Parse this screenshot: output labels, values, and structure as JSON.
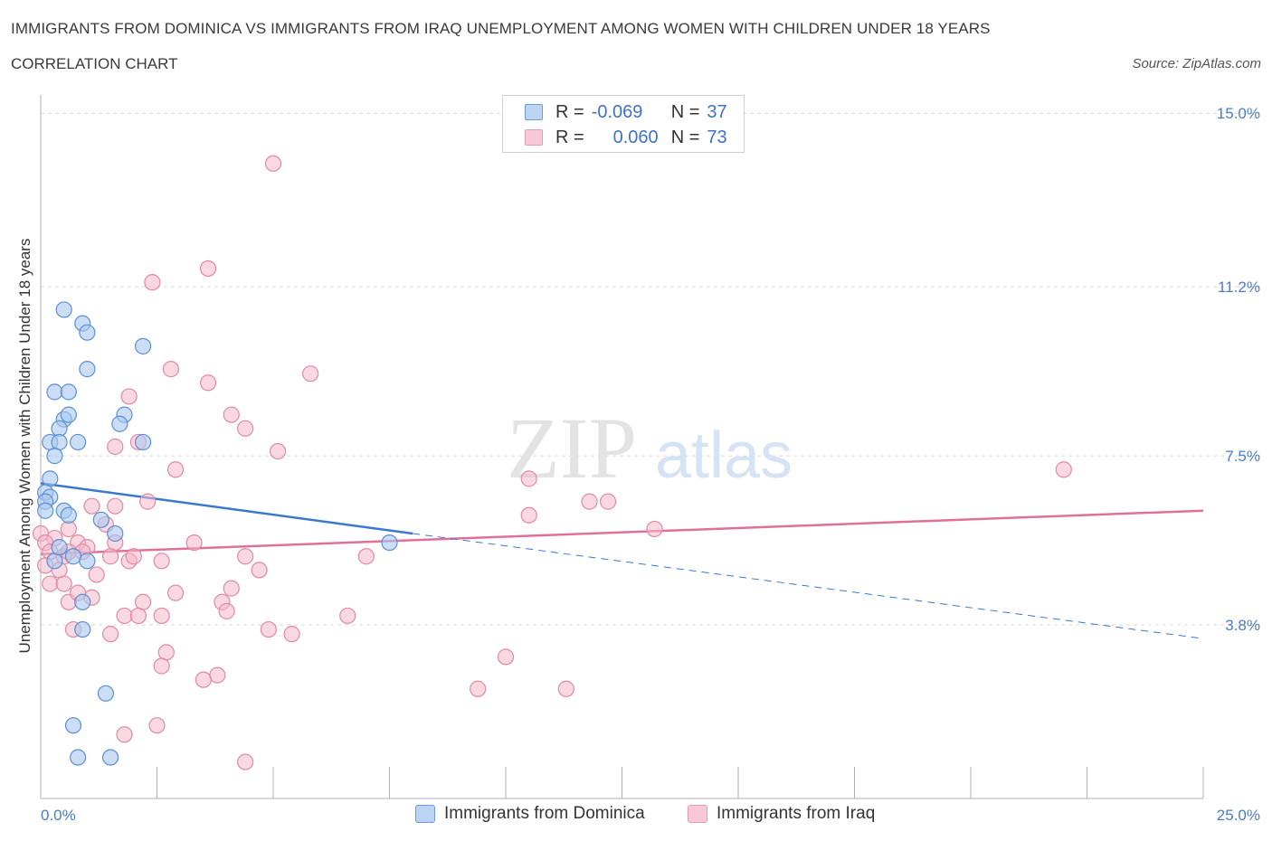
{
  "header": {
    "title": "IMMIGRANTS FROM DOMINICA VS IMMIGRANTS FROM IRAQ UNEMPLOYMENT AMONG WOMEN WITH CHILDREN UNDER 18 YEARS",
    "subtitle": "CORRELATION CHART",
    "source": "Source: ZipAtlas.com"
  },
  "watermark": {
    "zip": "ZIP",
    "atlas": "atlas"
  },
  "legend": {
    "rows": [
      {
        "r_label": "R =",
        "r_value": "-0.069",
        "n_label": "N =",
        "n_value": "37"
      },
      {
        "r_label": "R =",
        "r_value": "0.060",
        "n_label": "N =",
        "n_value": "73"
      }
    ]
  },
  "bottom_legend": {
    "series_a": "Immigrants from Dominica",
    "series_b": "Immigrants from Iraq"
  },
  "colors": {
    "dominica_fill": "#a9c8ef",
    "dominica_stroke": "#5b8fd6",
    "dominica_line": "#3a78d0",
    "iraq_fill": "#f4b8cb",
    "iraq_stroke": "#e08aa5",
    "iraq_line": "#e0709a",
    "tick": "#4a7cc7",
    "grid": "#d9d9d9"
  },
  "chart_data": {
    "type": "scatter",
    "title": "IMMIGRANTS FROM DOMINICA VS IMMIGRANTS FROM IRAQ UNEMPLOYMENT AMONG WOMEN WITH CHILDREN UNDER 18 YEARS",
    "xlabel": "",
    "ylabel": "Unemployment Among Women with Children Under 18 years",
    "xlim": [
      0,
      25
    ],
    "ylim": [
      0,
      15.4
    ],
    "y_ticks": [
      3.8,
      7.5,
      11.2,
      15.0
    ],
    "y_tick_labels": [
      "3.8%",
      "7.5%",
      "11.2%",
      "15.0%"
    ],
    "x_tick_labels": [
      "0.0%",
      "25.0%"
    ],
    "series": [
      {
        "name": "Immigrants from Dominica",
        "R": -0.069,
        "N": 37,
        "trend": {
          "x0": 0.0,
          "y0": 6.9,
          "x1": 8.0,
          "y1": 5.8,
          "dashed_to_x": 25.0,
          "dashed_to_y": 3.5
        },
        "points": [
          [
            0.5,
            10.7
          ],
          [
            0.9,
            10.4
          ],
          [
            1.0,
            10.2
          ],
          [
            2.2,
            9.9
          ],
          [
            1.0,
            9.4
          ],
          [
            0.3,
            8.9
          ],
          [
            0.6,
            8.9
          ],
          [
            0.5,
            8.3
          ],
          [
            0.6,
            8.4
          ],
          [
            1.8,
            8.4
          ],
          [
            1.7,
            8.2
          ],
          [
            0.4,
            8.1
          ],
          [
            0.2,
            7.8
          ],
          [
            0.4,
            7.8
          ],
          [
            0.8,
            7.8
          ],
          [
            2.2,
            7.8
          ],
          [
            0.3,
            7.5
          ],
          [
            0.2,
            7.0
          ],
          [
            0.1,
            6.7
          ],
          [
            0.2,
            6.6
          ],
          [
            0.1,
            6.5
          ],
          [
            0.5,
            6.3
          ],
          [
            0.6,
            6.2
          ],
          [
            0.1,
            6.3
          ],
          [
            1.3,
            6.1
          ],
          [
            1.6,
            5.8
          ],
          [
            7.5,
            5.6
          ],
          [
            0.3,
            5.2
          ],
          [
            0.7,
            5.3
          ],
          [
            1.0,
            5.2
          ],
          [
            0.9,
            4.3
          ],
          [
            0.9,
            3.7
          ],
          [
            1.4,
            2.3
          ],
          [
            0.7,
            1.6
          ],
          [
            0.8,
            0.9
          ],
          [
            1.5,
            0.9
          ],
          [
            0.4,
            5.5
          ]
        ]
      },
      {
        "name": "Immigrants from Iraq",
        "R": 0.06,
        "N": 73,
        "trend": {
          "x0": 0.0,
          "y0": 5.35,
          "x1": 25.0,
          "y1": 6.3
        },
        "points": [
          [
            5.0,
            13.9
          ],
          [
            3.6,
            11.6
          ],
          [
            2.4,
            11.3
          ],
          [
            5.8,
            9.3
          ],
          [
            2.8,
            9.4
          ],
          [
            3.6,
            9.1
          ],
          [
            1.9,
            8.8
          ],
          [
            4.1,
            8.4
          ],
          [
            4.4,
            8.1
          ],
          [
            5.1,
            7.6
          ],
          [
            1.6,
            7.7
          ],
          [
            2.1,
            7.8
          ],
          [
            2.9,
            7.2
          ],
          [
            22.0,
            7.2
          ],
          [
            10.5,
            7.0
          ],
          [
            2.3,
            6.5
          ],
          [
            11.8,
            6.5
          ],
          [
            12.2,
            6.5
          ],
          [
            1.1,
            6.4
          ],
          [
            1.6,
            6.4
          ],
          [
            10.5,
            6.2
          ],
          [
            1.4,
            6.0
          ],
          [
            0.0,
            5.8
          ],
          [
            0.3,
            5.7
          ],
          [
            0.6,
            5.9
          ],
          [
            13.2,
            5.9
          ],
          [
            0.8,
            5.6
          ],
          [
            1.0,
            5.5
          ],
          [
            1.6,
            5.6
          ],
          [
            0.1,
            5.6
          ],
          [
            0.2,
            5.4
          ],
          [
            3.3,
            5.6
          ],
          [
            0.5,
            5.3
          ],
          [
            0.6,
            5.4
          ],
          [
            0.9,
            5.4
          ],
          [
            1.5,
            5.3
          ],
          [
            1.9,
            5.2
          ],
          [
            2.0,
            5.3
          ],
          [
            2.6,
            5.2
          ],
          [
            4.4,
            5.3
          ],
          [
            7.0,
            5.3
          ],
          [
            0.1,
            5.1
          ],
          [
            0.4,
            5.0
          ],
          [
            1.2,
            4.9
          ],
          [
            4.7,
            5.0
          ],
          [
            0.2,
            4.7
          ],
          [
            0.5,
            4.7
          ],
          [
            2.9,
            4.5
          ],
          [
            4.1,
            4.6
          ],
          [
            0.6,
            4.3
          ],
          [
            1.1,
            4.4
          ],
          [
            0.8,
            4.5
          ],
          [
            2.2,
            4.3
          ],
          [
            3.9,
            4.3
          ],
          [
            4.0,
            4.1
          ],
          [
            1.8,
            4.0
          ],
          [
            2.1,
            4.0
          ],
          [
            2.6,
            4.0
          ],
          [
            6.6,
            4.0
          ],
          [
            0.7,
            3.7
          ],
          [
            1.5,
            3.6
          ],
          [
            4.9,
            3.7
          ],
          [
            5.4,
            3.6
          ],
          [
            2.7,
            3.2
          ],
          [
            10.0,
            3.1
          ],
          [
            2.6,
            2.9
          ],
          [
            3.8,
            2.7
          ],
          [
            3.5,
            2.6
          ],
          [
            9.4,
            2.4
          ],
          [
            11.3,
            2.4
          ],
          [
            2.5,
            1.6
          ],
          [
            1.8,
            1.4
          ],
          [
            4.4,
            0.8
          ]
        ]
      }
    ]
  }
}
